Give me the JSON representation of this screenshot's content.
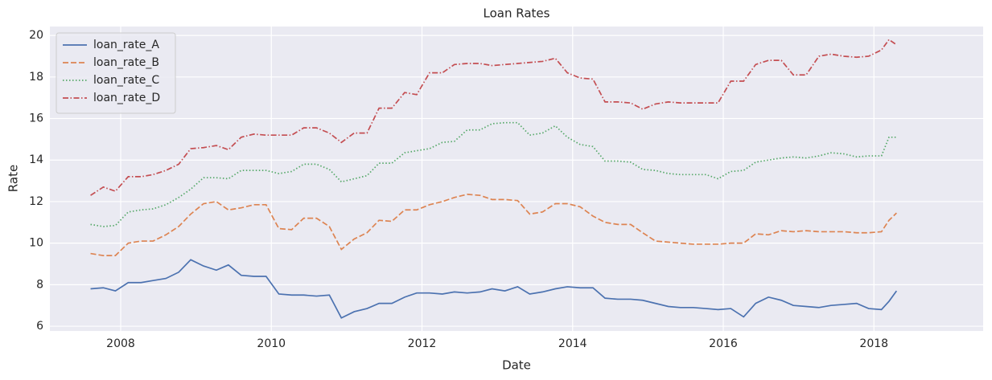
{
  "chart_data": {
    "type": "line",
    "title": "Loan Rates",
    "xlabel": "Date",
    "ylabel": "Rate",
    "xlim": [
      2007.06,
      2019.45
    ],
    "xticks": [
      2008,
      2010,
      2012,
      2014,
      2016,
      2018
    ],
    "ylim": [
      5.77,
      20.43
    ],
    "yticks": [
      6,
      8,
      10,
      12,
      14,
      16,
      18,
      20
    ],
    "grid": true,
    "legend": "upper left",
    "x": [
      2007.6,
      2007.77,
      2007.93,
      2008.1,
      2008.27,
      2008.43,
      2008.6,
      2008.77,
      2008.93,
      2009.1,
      2009.27,
      2009.43,
      2009.6,
      2009.77,
      2009.93,
      2010.1,
      2010.27,
      2010.43,
      2010.6,
      2010.77,
      2010.93,
      2011.1,
      2011.27,
      2011.43,
      2011.6,
      2011.77,
      2011.93,
      2012.1,
      2012.27,
      2012.43,
      2012.6,
      2012.77,
      2012.93,
      2013.1,
      2013.27,
      2013.43,
      2013.6,
      2013.77,
      2013.93,
      2014.1,
      2014.27,
      2014.43,
      2014.6,
      2014.77,
      2014.93,
      2015.1,
      2015.27,
      2015.43,
      2015.6,
      2015.77,
      2015.93,
      2016.1,
      2016.27,
      2016.43,
      2016.6,
      2016.77,
      2016.93,
      2017.1,
      2017.27,
      2017.43,
      2017.6,
      2017.77,
      2017.93,
      2018.1,
      2018.2,
      2018.3
    ],
    "series": [
      {
        "name": "loan_rate_A",
        "color": "#4c72b0",
        "dash": "solid",
        "values": [
          7.8,
          7.85,
          7.7,
          8.1,
          8.1,
          8.2,
          8.3,
          8.6,
          9.2,
          8.9,
          8.7,
          8.95,
          8.45,
          8.4,
          8.4,
          7.55,
          7.5,
          7.5,
          7.45,
          7.5,
          6.4,
          6.7,
          6.85,
          7.1,
          7.1,
          7.4,
          7.6,
          7.6,
          7.55,
          7.65,
          7.6,
          7.65,
          7.8,
          7.7,
          7.9,
          7.55,
          7.65,
          7.8,
          7.9,
          7.85,
          7.85,
          7.35,
          7.3,
          7.3,
          7.25,
          7.1,
          6.95,
          6.9,
          6.9,
          6.85,
          6.8,
          6.85,
          6.45,
          7.1,
          7.4,
          7.25,
          7.0,
          6.95,
          6.9,
          7.0,
          7.05,
          7.1,
          6.85,
          6.8,
          7.2,
          7.7
        ]
      },
      {
        "name": "loan_rate_B",
        "color": "#dd8452",
        "dash": "dashed",
        "values": [
          9.5,
          9.4,
          9.4,
          10.0,
          10.1,
          10.1,
          10.4,
          10.8,
          11.4,
          11.9,
          12.0,
          11.6,
          11.7,
          11.85,
          11.85,
          10.7,
          10.65,
          11.2,
          11.2,
          10.8,
          9.7,
          10.2,
          10.5,
          11.1,
          11.05,
          11.6,
          11.6,
          11.85,
          12.0,
          12.2,
          12.35,
          12.3,
          12.1,
          12.1,
          12.05,
          11.4,
          11.5,
          11.9,
          11.9,
          11.75,
          11.3,
          11.0,
          10.9,
          10.9,
          10.5,
          10.1,
          10.05,
          10.0,
          9.95,
          9.95,
          9.95,
          10.0,
          10.0,
          10.45,
          10.4,
          10.6,
          10.55,
          10.6,
          10.55,
          10.55,
          10.55,
          10.5,
          10.5,
          10.55,
          11.1,
          11.45
        ]
      },
      {
        "name": "loan_rate_C",
        "color": "#55a868",
        "dash": "dotted",
        "values": [
          10.9,
          10.8,
          10.85,
          11.5,
          11.6,
          11.65,
          11.85,
          12.2,
          12.6,
          13.15,
          13.15,
          13.1,
          13.5,
          13.5,
          13.5,
          13.35,
          13.45,
          13.8,
          13.8,
          13.55,
          12.95,
          13.1,
          13.25,
          13.85,
          13.85,
          14.35,
          14.45,
          14.55,
          14.85,
          14.9,
          15.45,
          15.45,
          15.75,
          15.8,
          15.8,
          15.2,
          15.3,
          15.65,
          15.1,
          14.75,
          14.65,
          13.95,
          13.95,
          13.9,
          13.55,
          13.5,
          13.35,
          13.3,
          13.3,
          13.3,
          13.1,
          13.45,
          13.5,
          13.9,
          14.0,
          14.1,
          14.15,
          14.1,
          14.2,
          14.35,
          14.3,
          14.15,
          14.2,
          14.2,
          15.1,
          15.1
        ]
      },
      {
        "name": "loan_rate_D",
        "color": "#c44e52",
        "dash": "dashdot",
        "values": [
          12.3,
          12.7,
          12.5,
          13.2,
          13.2,
          13.3,
          13.5,
          13.8,
          14.55,
          14.6,
          14.7,
          14.5,
          15.1,
          15.25,
          15.2,
          15.2,
          15.2,
          15.55,
          15.55,
          15.3,
          14.85,
          15.3,
          15.3,
          16.5,
          16.5,
          17.25,
          17.15,
          18.2,
          18.2,
          18.6,
          18.65,
          18.65,
          18.55,
          18.6,
          18.65,
          18.7,
          18.75,
          18.9,
          18.2,
          17.95,
          17.9,
          16.8,
          16.8,
          16.75,
          16.45,
          16.7,
          16.8,
          16.75,
          16.75,
          16.75,
          16.75,
          17.8,
          17.8,
          18.6,
          18.8,
          18.8,
          18.1,
          18.1,
          19.0,
          19.1,
          19.0,
          18.95,
          19.0,
          19.3,
          19.8,
          19.55
        ]
      }
    ]
  }
}
